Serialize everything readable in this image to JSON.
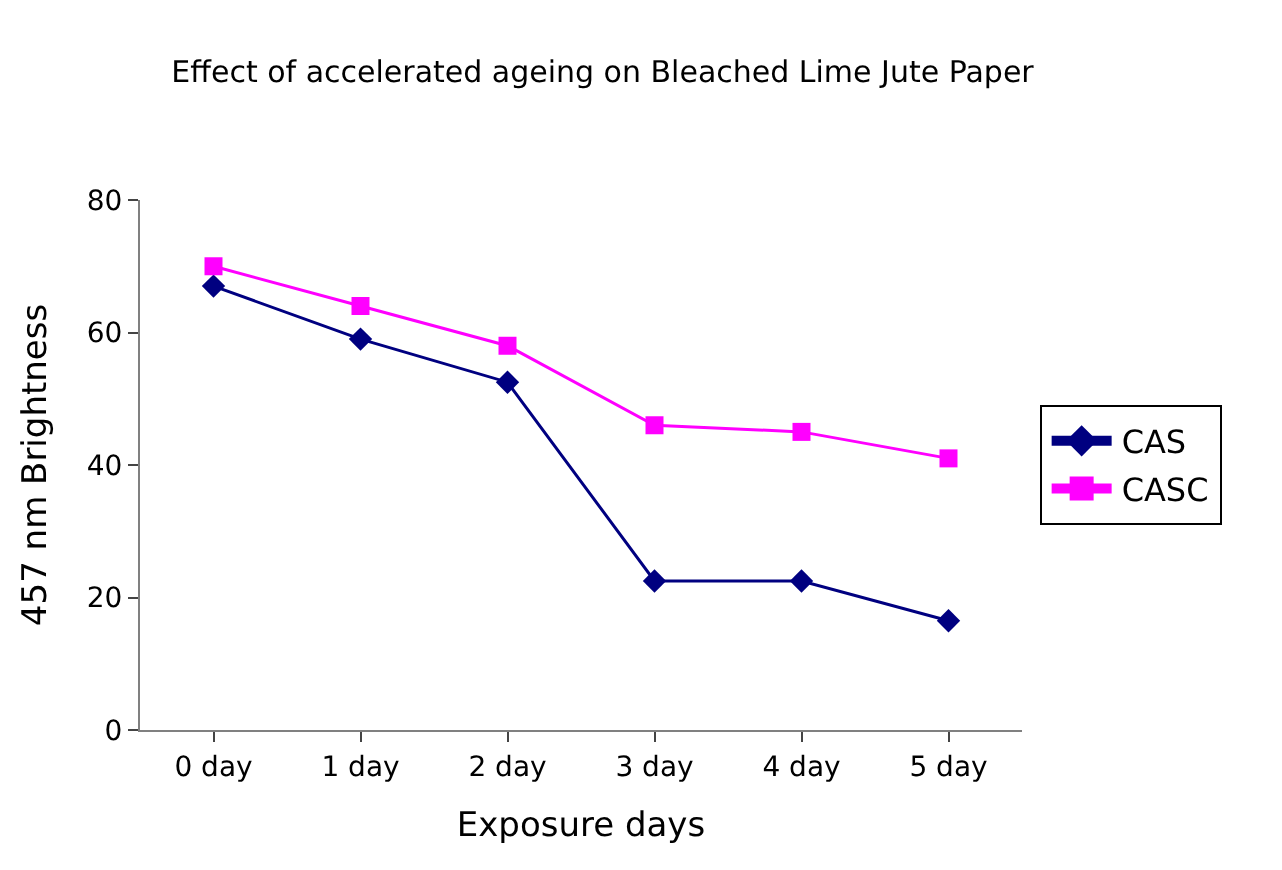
{
  "chart_data": {
    "type": "line",
    "title": "Effect of accelerated ageing on Bleached Lime Jute Paper",
    "xlabel": "Exposure days",
    "ylabel": "457 nm Brightness",
    "categories": [
      "0 day",
      "1 day",
      "2 day",
      "3 day",
      "4 day",
      "5 day"
    ],
    "series": [
      {
        "name": "CAS",
        "color": "#000080",
        "marker": "diamond",
        "values": [
          67,
          59,
          52.5,
          22.5,
          22.5,
          16.5
        ]
      },
      {
        "name": "CASC",
        "color": "#ff00ff",
        "marker": "square",
        "values": [
          70,
          64,
          58,
          46,
          45,
          41
        ]
      }
    ],
    "ylim": [
      0,
      80
    ],
    "yticks": [
      0,
      20,
      40,
      60,
      80
    ],
    "legend": "right"
  }
}
